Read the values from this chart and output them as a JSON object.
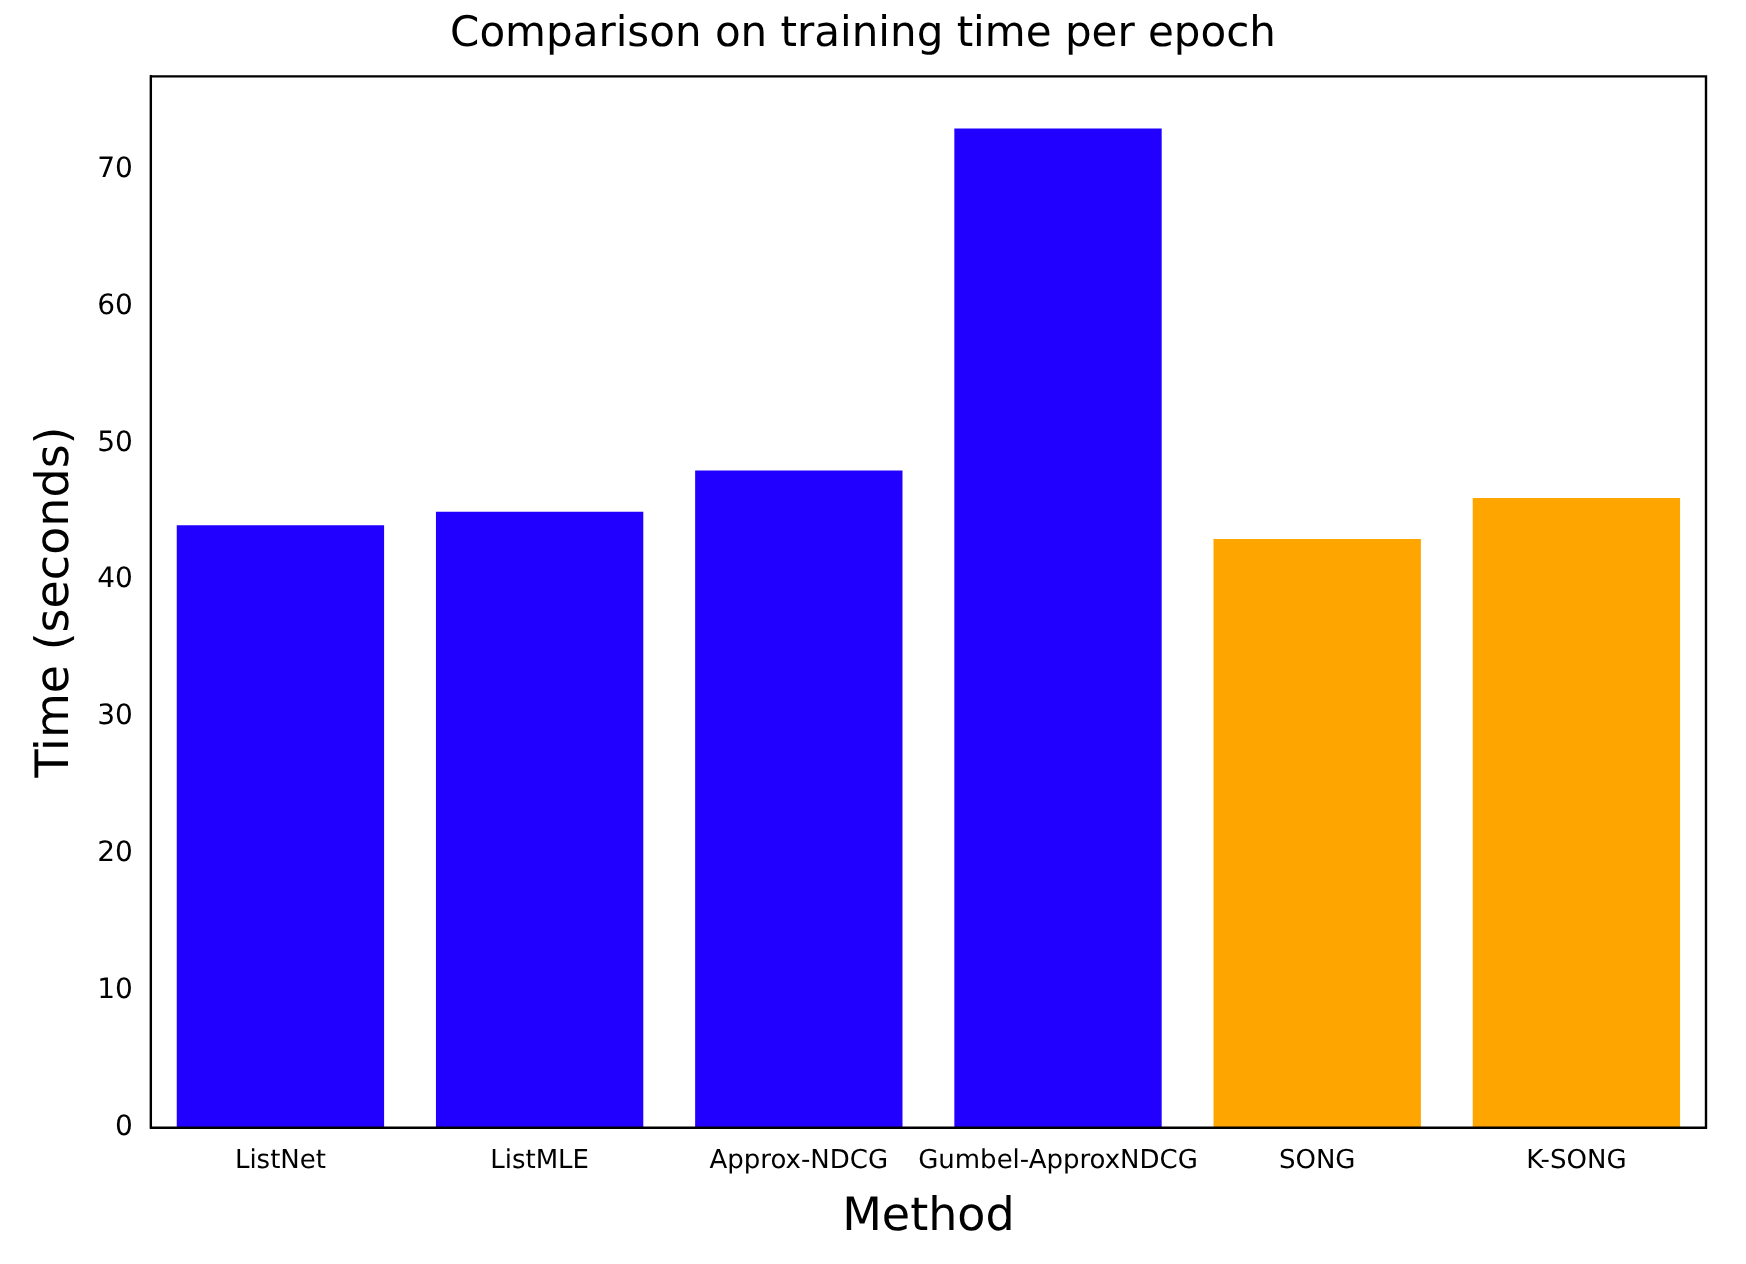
{
  "chart_data": {
    "type": "bar",
    "title": "Comparison on training time per epoch",
    "xlabel": "Method",
    "ylabel": "Time (seconds)",
    "categories": [
      "ListNet",
      "ListMLE",
      "Approx-NDCG",
      "Gumbel-ApproxNDCG",
      "SONG",
      "K-SONG"
    ],
    "values": [
      44,
      45,
      48,
      73,
      43,
      46
    ],
    "colors": [
      "#2200ff",
      "#2200ff",
      "#2200ff",
      "#2200ff",
      "#ffa500",
      "#ffa500"
    ],
    "ylim": [
      0,
      76.8
    ],
    "yticks": [
      0,
      10,
      20,
      30,
      40,
      50,
      60,
      70
    ]
  }
}
